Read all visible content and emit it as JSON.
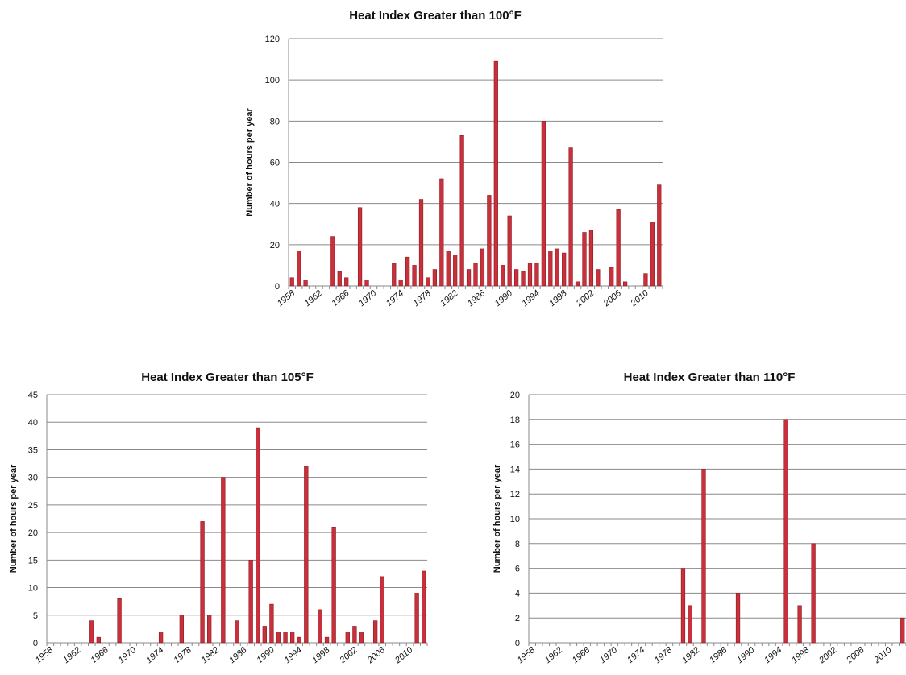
{
  "chart_data": [
    {
      "type": "bar",
      "title": "Heat Index Greater than 100°F",
      "ylabel": "Number of hours per year",
      "xlabel": "",
      "ylim": [
        0,
        120
      ],
      "yticks": [
        0,
        20,
        40,
        60,
        80,
        100,
        120
      ],
      "grid": true,
      "color": "#c8303b",
      "x_tick_labels": [
        "1958",
        "1962",
        "1966",
        "1970",
        "1974",
        "1978",
        "1982",
        "1986",
        "1990",
        "1994",
        "1998",
        "2002",
        "2006",
        "2010"
      ],
      "categories": [
        "1958",
        "1959",
        "1960",
        "1961",
        "1962",
        "1963",
        "1964",
        "1965",
        "1966",
        "1967",
        "1968",
        "1969",
        "1970",
        "1971",
        "1972",
        "1973",
        "1974",
        "1975",
        "1976",
        "1977",
        "1978",
        "1979",
        "1980",
        "1981",
        "1982",
        "1983",
        "1984",
        "1985",
        "1986",
        "1987",
        "1988",
        "1989",
        "1990",
        "1991",
        "1992",
        "1993",
        "1994",
        "1995",
        "1996",
        "1997",
        "1998",
        "1999",
        "2000",
        "2001",
        "2002",
        "2003",
        "2004",
        "2005",
        "2006",
        "2007",
        "2008",
        "2009",
        "2010",
        "2011",
        "2012"
      ],
      "values": [
        4,
        17,
        3,
        0,
        0,
        0,
        24,
        7,
        4,
        0,
        38,
        3,
        0,
        0,
        0,
        11,
        3,
        14,
        10,
        42,
        4,
        8,
        52,
        17,
        15,
        73,
        8,
        11,
        18,
        44,
        109,
        10,
        34,
        8,
        7,
        11,
        11,
        80,
        17,
        18,
        16,
        67,
        2,
        26,
        27,
        8,
        0,
        9,
        37,
        2,
        0,
        0,
        6,
        31,
        49
      ]
    },
    {
      "type": "bar",
      "title": "Heat Index Greater than 105°F",
      "ylabel": "Number of hours per year",
      "xlabel": "",
      "ylim": [
        0,
        45
      ],
      "yticks": [
        0,
        5,
        10,
        15,
        20,
        25,
        30,
        35,
        40,
        45
      ],
      "grid": true,
      "color": "#c8303b",
      "x_tick_labels": [
        "1958",
        "1962",
        "1966",
        "1970",
        "1974",
        "1978",
        "1982",
        "1986",
        "1990",
        "1994",
        "1998",
        "2002",
        "2006",
        "2010"
      ],
      "categories": [
        "1958",
        "1959",
        "1960",
        "1961",
        "1962",
        "1963",
        "1964",
        "1965",
        "1966",
        "1967",
        "1968",
        "1969",
        "1970",
        "1971",
        "1972",
        "1973",
        "1974",
        "1975",
        "1976",
        "1977",
        "1978",
        "1979",
        "1980",
        "1981",
        "1982",
        "1983",
        "1984",
        "1985",
        "1986",
        "1987",
        "1988",
        "1989",
        "1990",
        "1991",
        "1992",
        "1993",
        "1994",
        "1995",
        "1996",
        "1997",
        "1998",
        "1999",
        "2000",
        "2001",
        "2002",
        "2003",
        "2004",
        "2005",
        "2006",
        "2007",
        "2008",
        "2009",
        "2010",
        "2011",
        "2012"
      ],
      "values": [
        0,
        0,
        0,
        0,
        0,
        0,
        4,
        1,
        0,
        0,
        8,
        0,
        0,
        0,
        0,
        0,
        2,
        0,
        0,
        5,
        0,
        0,
        22,
        5,
        0,
        30,
        0,
        4,
        0,
        15,
        39,
        3,
        7,
        2,
        2,
        2,
        1,
        32,
        0,
        6,
        1,
        21,
        0,
        2,
        3,
        2,
        0,
        4,
        12,
        0,
        0,
        0,
        0,
        9,
        13
      ]
    },
    {
      "type": "bar",
      "title": "Heat Index Greater than 110°F",
      "ylabel": "Number of hours per year",
      "xlabel": "",
      "ylim": [
        0,
        20
      ],
      "yticks": [
        0,
        2,
        4,
        6,
        8,
        10,
        12,
        14,
        16,
        18,
        20
      ],
      "grid": true,
      "color": "#c8303b",
      "x_tick_labels": [
        "1958",
        "1962",
        "1966",
        "1970",
        "1974",
        "1978",
        "1982",
        "1986",
        "1990",
        "1994",
        "1998",
        "2002",
        "2006",
        "2010"
      ],
      "categories": [
        "1958",
        "1959",
        "1960",
        "1961",
        "1962",
        "1963",
        "1964",
        "1965",
        "1966",
        "1967",
        "1968",
        "1969",
        "1970",
        "1971",
        "1972",
        "1973",
        "1974",
        "1975",
        "1976",
        "1977",
        "1978",
        "1979",
        "1980",
        "1981",
        "1982",
        "1983",
        "1984",
        "1985",
        "1986",
        "1987",
        "1988",
        "1989",
        "1990",
        "1991",
        "1992",
        "1993",
        "1994",
        "1995",
        "1996",
        "1997",
        "1998",
        "1999",
        "2000",
        "2001",
        "2002",
        "2003",
        "2004",
        "2005",
        "2006",
        "2007",
        "2008",
        "2009",
        "2010",
        "2011",
        "2012"
      ],
      "values": [
        0,
        0,
        0,
        0,
        0,
        0,
        0,
        0,
        0,
        0,
        0,
        0,
        0,
        0,
        0,
        0,
        0,
        0,
        0,
        0,
        0,
        0,
        6,
        3,
        0,
        14,
        0,
        0,
        0,
        0,
        4,
        0,
        0,
        0,
        0,
        0,
        0,
        18,
        0,
        3,
        0,
        8,
        0,
        0,
        0,
        0,
        0,
        0,
        0,
        0,
        0,
        0,
        0,
        0,
        2
      ]
    }
  ]
}
